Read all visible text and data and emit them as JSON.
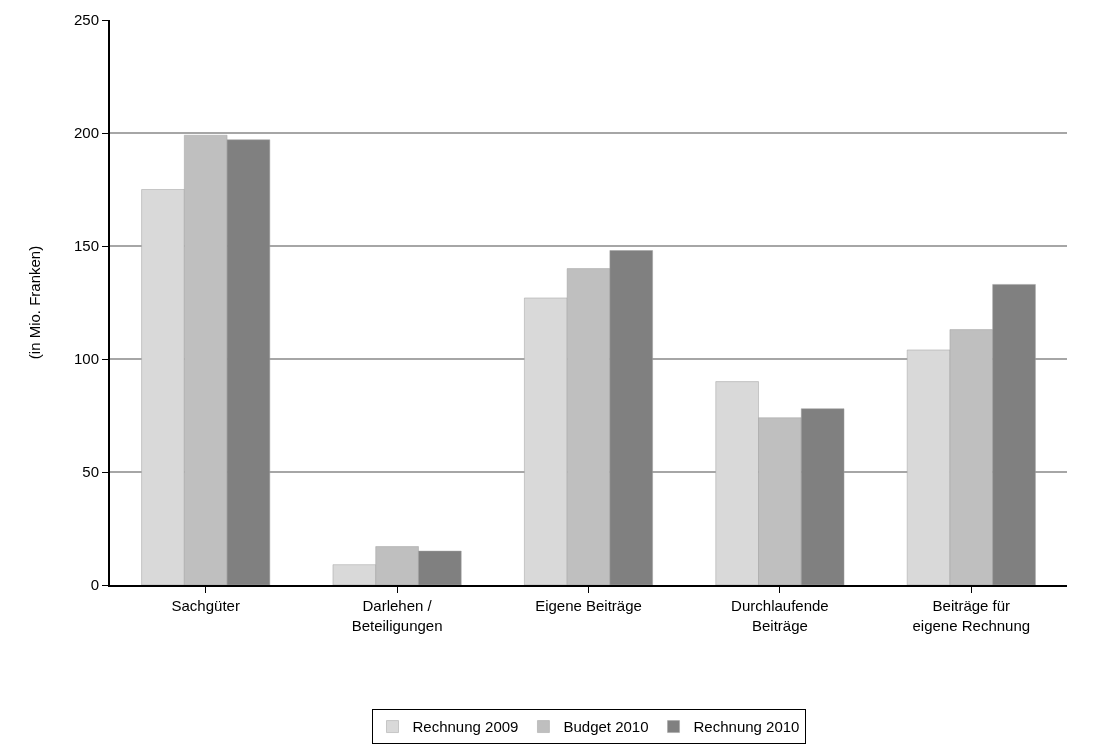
{
  "chart_data": {
    "type": "bar",
    "ylabel": "(in Mio. Franken)",
    "categories": [
      "Sachgüter",
      "Darlehen /\nBeteiligungen",
      "Eigene Beiträge",
      "Durchlaufende\nBeiträge",
      "Beiträge für\neigene Rechnung"
    ],
    "series": [
      {
        "name": "Rechnung 2009",
        "color": "#d9d9d9",
        "values": [
          175,
          9,
          127,
          90,
          104
        ]
      },
      {
        "name": "Budget 2010",
        "color": "#bfbfbf",
        "values": [
          199,
          17,
          140,
          74,
          113
        ]
      },
      {
        "name": "Rechnung 2010",
        "color": "#808080",
        "values": [
          197,
          15,
          148,
          78,
          133
        ]
      }
    ],
    "ylim": [
      0,
      250
    ],
    "yticks": [
      0,
      50,
      100,
      150,
      200,
      250
    ],
    "grid": "y",
    "legend": "bottom"
  }
}
